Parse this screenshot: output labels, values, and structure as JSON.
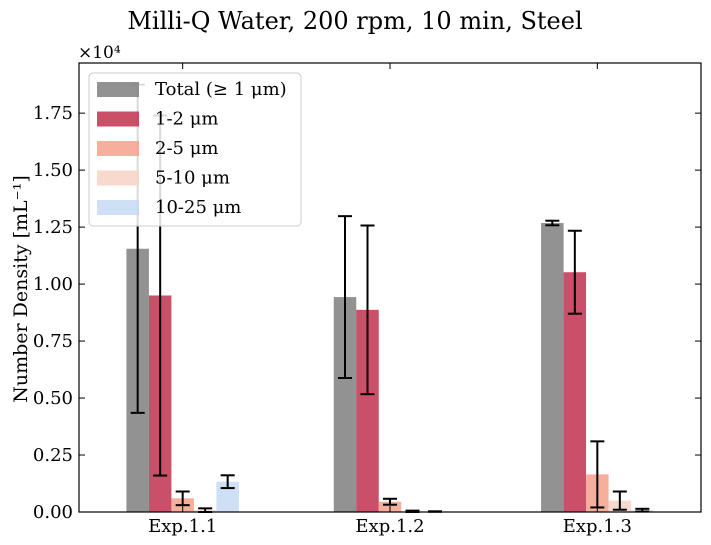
{
  "chart_data": {
    "type": "bar",
    "title": "Milli-Q Water, 200 rpm, 10 min, Steel",
    "xlabel": "",
    "ylabel": "Number Density [mL⁻¹]",
    "y_scale_label": "×10⁴",
    "categories": [
      "Exp.1.1",
      "Exp.1.2",
      "Exp.1.3"
    ],
    "ylim": [
      0,
      19700
    ],
    "yticks": [
      0,
      2500,
      5000,
      7500,
      10000,
      12500,
      15000,
      17500
    ],
    "ytick_labels": [
      "0.00",
      "0.25",
      "0.50",
      "0.75",
      "1.00",
      "1.25",
      "1.50",
      "1.75"
    ],
    "grid": false,
    "legend_position": "top-left",
    "series": [
      {
        "name": "Total (≥ 1 μm)",
        "color": "#7f7f7f",
        "opacity": 0.85,
        "values": [
          11550,
          9430,
          12680
        ],
        "errors": [
          7200,
          3550,
          100
        ]
      },
      {
        "name": "1-2 μm",
        "color": "#c1304d",
        "opacity": 0.85,
        "values": [
          9500,
          8870,
          10520
        ],
        "errors": [
          7900,
          3700,
          1820
        ]
      },
      {
        "name": "2-5 μm",
        "color": "#f4a08c",
        "opacity": 0.85,
        "values": [
          600,
          450,
          1650
        ],
        "errors": [
          300,
          130,
          1450
        ]
      },
      {
        "name": "5-10 μm",
        "color": "#f6d3c4",
        "opacity": 0.85,
        "values": [
          80,
          30,
          500
        ],
        "errors": [
          80,
          30,
          400
        ]
      },
      {
        "name": "10-25 μm",
        "color": "#c6d9f4",
        "opacity": 0.85,
        "values": [
          1330,
          20,
          80
        ],
        "errors": [
          280,
          10,
          60
        ]
      }
    ]
  }
}
